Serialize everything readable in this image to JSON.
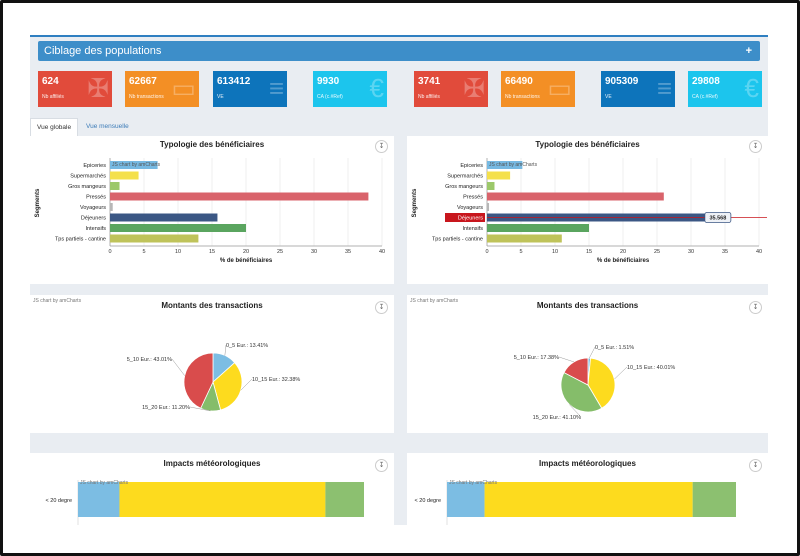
{
  "banner": {
    "title": "Ciblage des populations",
    "toggle": "+"
  },
  "stats": [
    {
      "value": "624",
      "label": "Nb affiliés",
      "color": "#e14b3b",
      "icon": "utensils-icon"
    },
    {
      "value": "62667",
      "label": "Nb transactions",
      "color": "#f38f25",
      "icon": "card-icon"
    },
    {
      "value": "613412",
      "label": "VE",
      "color": "#0d74bb",
      "icon": "bars-icon"
    },
    {
      "value": "9930",
      "label": "CA (c.#Ref)",
      "color": "#1cc5ed",
      "icon": "euro-icon"
    },
    {
      "value": "3741",
      "label": "Nb affiliés",
      "color": "#e14b3b",
      "icon": "utensils-icon"
    },
    {
      "value": "66490",
      "label": "Nb transactions",
      "color": "#f38f25",
      "icon": "card-icon"
    },
    {
      "value": "905309",
      "label": "VE",
      "color": "#0d74bb",
      "icon": "bars-icon"
    },
    {
      "value": "29808",
      "label": "CA (c.#Ref)",
      "color": "#1cc5ed",
      "icon": "euro-icon"
    }
  ],
  "tabs": [
    {
      "label": "Vue globale",
      "active": true
    },
    {
      "label": "Vue mensuelle",
      "active": false
    }
  ],
  "credit": "JS chart by amCharts",
  "download_icon": "download-icon",
  "chart_data": [
    {
      "type": "bar",
      "orientation": "horizontal",
      "title": "Typologie des bénéficiaires",
      "xlabel": "% de bénéficiaires",
      "ylabel": "Segments",
      "xlim": [
        0,
        40
      ],
      "xticks": [
        0,
        5,
        10,
        15,
        20,
        25,
        30,
        35,
        40
      ],
      "categories": [
        "Epiceries",
        "Supermarchés",
        "Gros mangeurs",
        "Pressés",
        "Voyageurs",
        "Déjeuners",
        "Intensifs",
        "Tps partiels - cantine"
      ],
      "values": [
        7.0,
        4.2,
        1.4,
        38.0,
        0.4,
        15.8,
        20.0,
        13.0
      ],
      "colors": [
        "#76b9e2",
        "#f4e04b",
        "#9cc86a",
        "#d9636b",
        "#b7b7b7",
        "#3b5784",
        "#5aa55f",
        "#bfc35a"
      ]
    },
    {
      "type": "bar",
      "orientation": "horizontal",
      "title": "Typologie des bénéficiaires",
      "xlabel": "% de bénéficiaires",
      "ylabel": "Segments",
      "xlim": [
        0,
        40
      ],
      "xticks": [
        0,
        5,
        10,
        15,
        20,
        25,
        30,
        35,
        40
      ],
      "categories": [
        "Epiceries",
        "Supermarchés",
        "Gros mangeurs",
        "Pressés",
        "Voyageurs",
        "Déjeuners",
        "Intensifs",
        "Tps partiels - cantine"
      ],
      "values": [
        5.2,
        3.4,
        1.1,
        26.0,
        0.3,
        35.568,
        15.0,
        11.0
      ],
      "colors": [
        "#76b9e2",
        "#f4e04b",
        "#9cc86a",
        "#d9636b",
        "#b7b7b7",
        "#3b5784",
        "#5aa55f",
        "#bfc35a"
      ],
      "highlight": {
        "category": "Déjeuners",
        "value_label": "35.568"
      }
    },
    {
      "type": "pie",
      "title": "Montants des transactions",
      "slices": [
        {
          "label": "0_5 Eur.: 13.41%",
          "value": 13.41,
          "color": "#7cbde3"
        },
        {
          "label": "10_15 Eur.: 32.38%",
          "value": 32.38,
          "color": "#fddb1e"
        },
        {
          "label": "15_20 Eur.: 11.20%",
          "value": 11.2,
          "color": "#85bd6a"
        },
        {
          "label": "5_10 Eur.: 43.01%",
          "value": 43.01,
          "color": "#d94c4c"
        }
      ]
    },
    {
      "type": "pie",
      "title": "Montants des transactions",
      "slices": [
        {
          "label": "0_5 Eur.: 1.51%",
          "value": 1.51,
          "color": "#7cbde3"
        },
        {
          "label": "10_15 Eur.: 40.01%",
          "value": 40.01,
          "color": "#fddb1e"
        },
        {
          "label": "15_20 Eur.: 41.10%",
          "value": 41.1,
          "color": "#85bd6a"
        },
        {
          "label": "5_10 Eur.: 17.38%",
          "value": 17.38,
          "color": "#d94c4c"
        }
      ]
    },
    {
      "type": "bar",
      "orientation": "horizontal-stacked",
      "title": "Impacts météorologiques",
      "categories": [
        "< 20 degre"
      ],
      "series": [
        {
          "values": [
            0.145
          ],
          "color": "#7cbde3"
        },
        {
          "values": [
            0.72
          ],
          "color": "#fddb1e"
        },
        {
          "values": [
            0.135
          ],
          "color": "#8cc070"
        }
      ]
    },
    {
      "type": "bar",
      "orientation": "horizontal-stacked",
      "title": "Impacts météorologiques",
      "categories": [
        "< 20 degre"
      ],
      "series": [
        {
          "values": [
            0.13
          ],
          "color": "#7cbde3"
        },
        {
          "values": [
            0.72
          ],
          "color": "#fddb1e"
        },
        {
          "values": [
            0.15
          ],
          "color": "#8cc070"
        }
      ]
    }
  ]
}
